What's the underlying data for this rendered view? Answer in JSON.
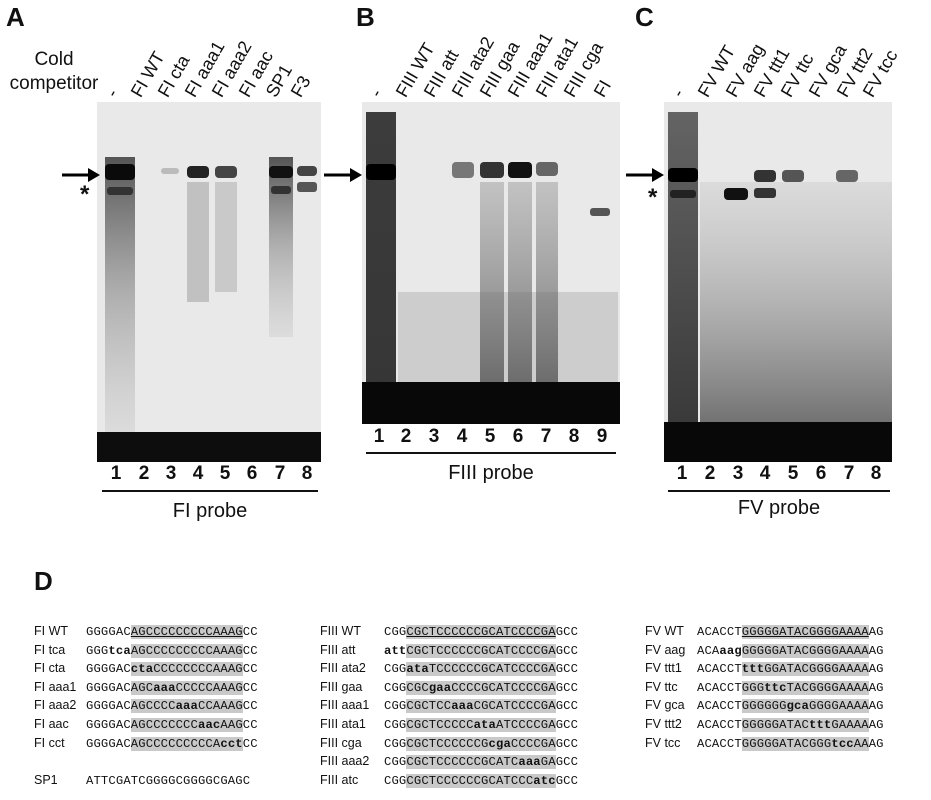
{
  "panels": {
    "A": {
      "letter": "A",
      "competitor_label": [
        "Cold",
        "competitor"
      ],
      "lanes": [
        "-",
        "FI WT",
        "FI cta",
        "FI aaa1",
        "FI aaa2",
        "FI aac",
        "SP1",
        "F3"
      ],
      "numbers": [
        "1",
        "2",
        "3",
        "4",
        "5",
        "6",
        "7",
        "8"
      ],
      "probe": "FI probe"
    },
    "B": {
      "letter": "B",
      "lanes": [
        "-",
        "FIII WT",
        "FIII att",
        "FIII ata2",
        "FIII gaa",
        "FIII aaa1",
        "FIII ata1",
        "FIII cga",
        "FI"
      ],
      "numbers": [
        "1",
        "2",
        "3",
        "4",
        "5",
        "6",
        "7",
        "8",
        "9"
      ],
      "probe": "FIII probe"
    },
    "C": {
      "letter": "C",
      "lanes": [
        "-",
        "FV WT",
        "FV aag",
        "FV ttt1",
        "FV ttc",
        "FV gca",
        "FV ttt2",
        "FV tcc"
      ],
      "numbers": [
        "1",
        "2",
        "3",
        "4",
        "5",
        "6",
        "7",
        "8"
      ],
      "probe": "FV probe"
    },
    "D": {
      "letter": "D",
      "colA": [
        {
          "name": "FI WT",
          "pre": "GGGGAC",
          "hl": "AGCCCCCCCCCAAAG",
          "post": "CC"
        },
        {
          "name": "FI tca",
          "pre": "GGG",
          "mut": "tca",
          "hl": "AGCCCCCCCCCAAAG",
          "post": "CC"
        },
        {
          "name": "FI cta",
          "pre": "GGGGAC",
          "hl": "ctaCCCCCCCCAAAG",
          "post": "CC"
        },
        {
          "name": "FI aaa1",
          "pre": "GGGGAC",
          "hl": "AGCaaaCCCCCAAAG",
          "post": "CC"
        },
        {
          "name": "FI aaa2",
          "pre": "GGGGAC",
          "hl": "AGCCCCaaaCCAAAG",
          "post": "CC"
        },
        {
          "name": "FI aac",
          "pre": "GGGGAC",
          "hl": "AGCCCCCCCaacAAG",
          "post": "CC"
        },
        {
          "name": "FI cct",
          "pre": "GGGGAC",
          "hl": "AGCCCCCCCCCAcct",
          "post": "CC"
        },
        {
          "name": "",
          "pre": "",
          "hl": "",
          "post": ""
        },
        {
          "name": "SP1",
          "pre": "ATTCGATCGGGGCGGGGCGAGC",
          "hl": "",
          "post": ""
        }
      ],
      "colB": [
        {
          "name": "FIII WT",
          "pre": "CGG",
          "hl": "CGCTCCCCCCGCATCCCCGA",
          "post": "GCC"
        },
        {
          "name": "FIII att",
          "pre": "att",
          "hl": "CGCTCCCCCCGCATCCCCGA",
          "post": "GCC"
        },
        {
          "name": "FIII ata2",
          "pre": "CGG",
          "hl": "ataTCCCCCCGCATCCCCGA",
          "post": "GCC"
        },
        {
          "name": "FIII gaa",
          "pre": "CGG",
          "hl": "CGCgaaCCCCGCATCCCCGA",
          "post": "GCC"
        },
        {
          "name": "FIII aaa1",
          "pre": "CGG",
          "hl": "CGCTCCaaaCGCATCCCCGA",
          "post": "GCC"
        },
        {
          "name": "FIII ata1",
          "pre": "CGG",
          "hl": "CGCTCCCCCataATCCCCGA",
          "post": "GCC"
        },
        {
          "name": "FIII cga",
          "pre": "CGG",
          "hl": "CGCTCCCCCCGcgaCCCCGA",
          "post": "GCC"
        },
        {
          "name": "FIII aaa2",
          "pre": "CGG",
          "hl": "CGCTCCCCCCGCATCaaaGA",
          "post": "GCC"
        },
        {
          "name": "FIII atc",
          "pre": "CGG",
          "hl": "CGCTCCCCCCGCATCCCatc",
          "post": "GCC"
        }
      ],
      "colC": [
        {
          "name": "FV WT",
          "pre": "ACACCT",
          "hl": "GGGGGATACGGGGAAAA",
          "post": "AG"
        },
        {
          "name": "FV aag",
          "pre": "ACAaag",
          "hl": "GGGGGATACGGGGAAAA",
          "post": "AG"
        },
        {
          "name": "FV ttt1",
          "pre": "ACACCT",
          "hl": "tttGGATACGGGGAAAA",
          "post": "AG"
        },
        {
          "name": "FV ttc",
          "pre": "ACACCT",
          "hl": "GGGttcTACGGGGAAAA",
          "post": "AG"
        },
        {
          "name": "FV gca",
          "pre": "ACACCT",
          "hl": "GGGGGGgcaGGGGAAAA",
          "post": "AG"
        },
        {
          "name": "FV ttt2",
          "pre": "ACACCT",
          "hl": "GGGGGATACtttGAAAA",
          "post": "AG"
        },
        {
          "name": "FV tcc",
          "pre": "ACACCT",
          "hl": "GGGGGATACGGGtccAA",
          "post": "AG"
        }
      ]
    }
  }
}
